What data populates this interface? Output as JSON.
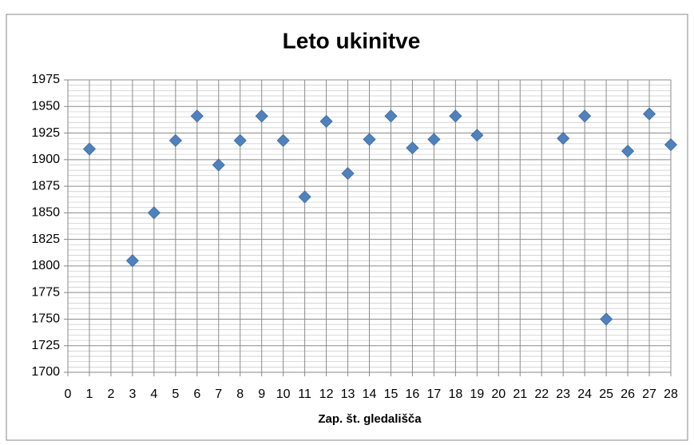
{
  "chart_data": {
    "type": "scatter",
    "title": "Leto ukinitve",
    "x_label": "Zap. št. gledališča",
    "x": [
      1,
      3,
      4,
      5,
      6,
      7,
      8,
      9,
      10,
      11,
      12,
      13,
      14,
      15,
      16,
      17,
      18,
      19,
      23,
      24,
      25,
      26,
      27,
      28
    ],
    "values": [
      1910,
      1805,
      1850,
      1918,
      1941,
      1895,
      1918,
      1941,
      1918,
      1865,
      1936,
      1887,
      1919,
      1941,
      1911,
      1919,
      1941,
      1923,
      1920,
      1941,
      1750,
      1908,
      1943,
      1914
    ],
    "color": "#4f81bd",
    "xlim": [
      0,
      28
    ],
    "xticks": [
      0,
      1,
      2,
      3,
      4,
      5,
      6,
      7,
      8,
      9,
      10,
      11,
      12,
      13,
      14,
      15,
      16,
      17,
      18,
      19,
      20,
      21,
      22,
      23,
      24,
      25,
      26,
      27,
      28
    ],
    "ylim": [
      1700,
      1975
    ],
    "yticks": [
      1700,
      1725,
      1750,
      1775,
      1800,
      1825,
      1850,
      1875,
      1900,
      1925,
      1950,
      1975
    ],
    "grid": true
  }
}
